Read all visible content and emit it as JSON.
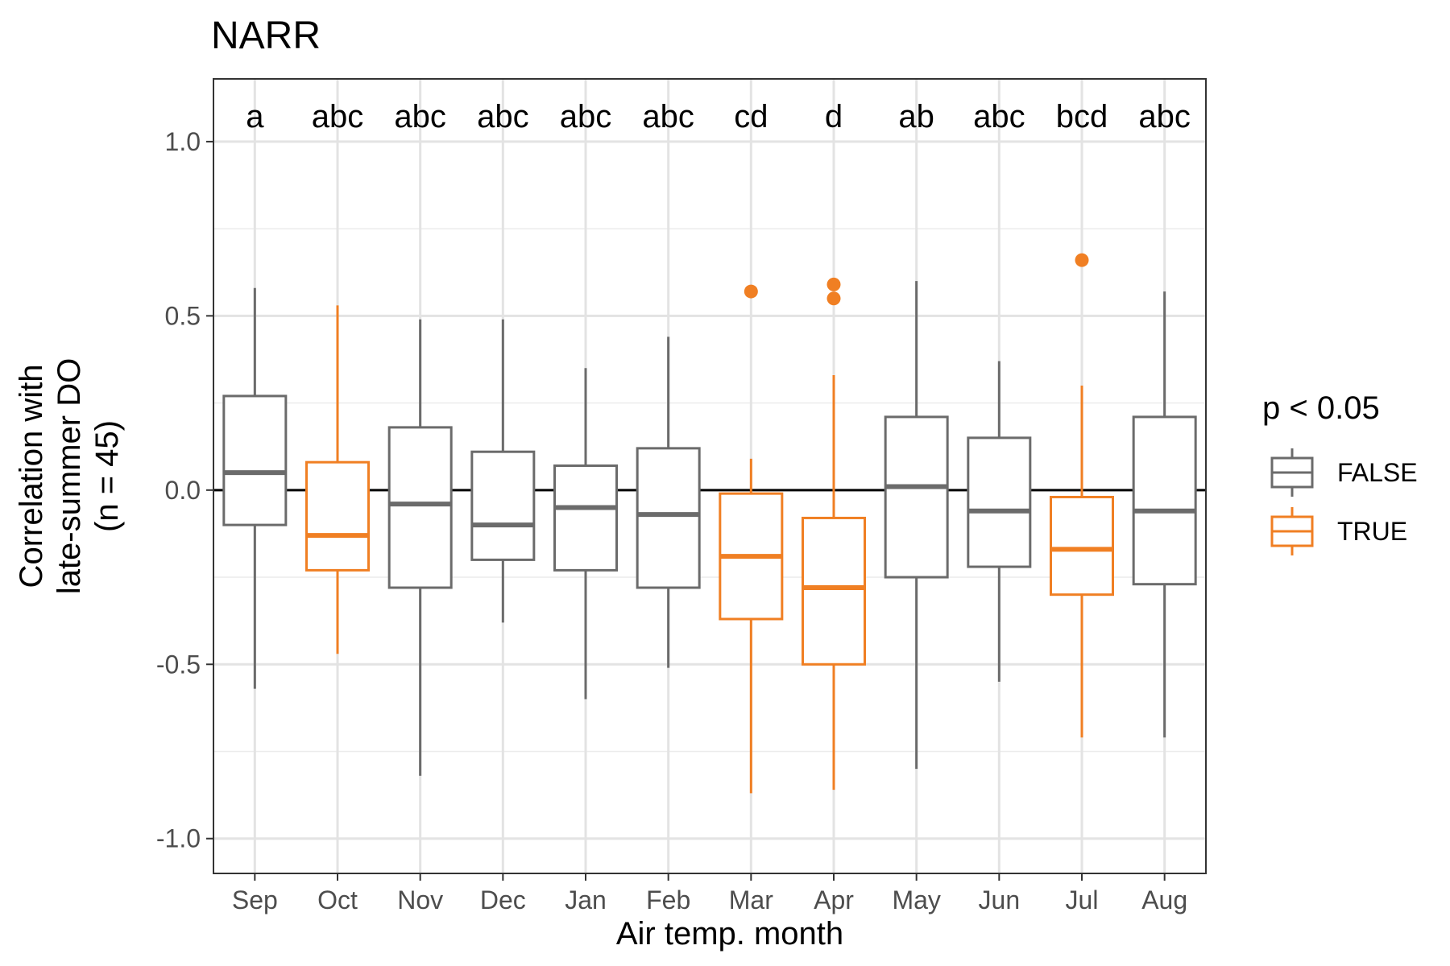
{
  "chart_data": {
    "type": "box",
    "title": "NARR",
    "xlabel": "Air temp. month",
    "ylabel_lines": [
      "Correlation with",
      "late-summer DO",
      "(n = 45)"
    ],
    "ylim": [
      -1.1,
      1.18
    ],
    "yticks": [
      -1.0,
      -0.5,
      0.0,
      0.5,
      1.0
    ],
    "ytick_labels": [
      "-1.0",
      "-0.5",
      "0.0",
      "0.5",
      "1.0"
    ],
    "reference_line_y": 0,
    "grid": true,
    "legend": {
      "title": "p < 0.05",
      "placement": "right",
      "entries": [
        {
          "label": "FALSE",
          "color": "#6b6b6b"
        },
        {
          "label": "TRUE",
          "color": "#f07f23"
        }
      ]
    },
    "colors": {
      "FALSE": "#6b6b6b",
      "TRUE": "#f07f23"
    },
    "boxes": [
      {
        "month": "Sep",
        "group_letter": "a",
        "significant": false,
        "whisker_low": -0.57,
        "q1": -0.1,
        "median": 0.05,
        "q3": 0.27,
        "whisker_high": 0.58,
        "outliers": []
      },
      {
        "month": "Oct",
        "group_letter": "abc",
        "significant": true,
        "whisker_low": -0.47,
        "q1": -0.23,
        "median": -0.13,
        "q3": 0.08,
        "whisker_high": 0.53,
        "outliers": []
      },
      {
        "month": "Nov",
        "group_letter": "abc",
        "significant": false,
        "whisker_low": -0.82,
        "q1": -0.28,
        "median": -0.04,
        "q3": 0.18,
        "whisker_high": 0.49,
        "outliers": []
      },
      {
        "month": "Dec",
        "group_letter": "abc",
        "significant": false,
        "whisker_low": -0.38,
        "q1": -0.2,
        "median": -0.1,
        "q3": 0.11,
        "whisker_high": 0.49,
        "outliers": []
      },
      {
        "month": "Jan",
        "group_letter": "abc",
        "significant": false,
        "whisker_low": -0.6,
        "q1": -0.23,
        "median": -0.05,
        "q3": 0.07,
        "whisker_high": 0.35,
        "outliers": []
      },
      {
        "month": "Feb",
        "group_letter": "abc",
        "significant": false,
        "whisker_low": -0.51,
        "q1": -0.28,
        "median": -0.07,
        "q3": 0.12,
        "whisker_high": 0.44,
        "outliers": []
      },
      {
        "month": "Mar",
        "group_letter": "cd",
        "significant": true,
        "whisker_low": -0.87,
        "q1": -0.37,
        "median": -0.19,
        "q3": -0.01,
        "whisker_high": 0.09,
        "outliers": [
          0.57
        ]
      },
      {
        "month": "Apr",
        "group_letter": "d",
        "significant": true,
        "whisker_low": -0.86,
        "q1": -0.5,
        "median": -0.28,
        "q3": -0.08,
        "whisker_high": 0.33,
        "outliers": [
          0.59,
          0.55
        ]
      },
      {
        "month": "May",
        "group_letter": "ab",
        "significant": false,
        "whisker_low": -0.8,
        "q1": -0.25,
        "median": 0.01,
        "q3": 0.21,
        "whisker_high": 0.6,
        "outliers": []
      },
      {
        "month": "Jun",
        "group_letter": "abc",
        "significant": false,
        "whisker_low": -0.55,
        "q1": -0.22,
        "median": -0.06,
        "q3": 0.15,
        "whisker_high": 0.37,
        "outliers": []
      },
      {
        "month": "Jul",
        "group_letter": "bcd",
        "significant": true,
        "whisker_low": -0.71,
        "q1": -0.3,
        "median": -0.17,
        "q3": -0.02,
        "whisker_high": 0.3,
        "outliers": [
          0.66
        ]
      },
      {
        "month": "Aug",
        "group_letter": "abc",
        "significant": false,
        "whisker_low": -0.71,
        "q1": -0.27,
        "median": -0.06,
        "q3": 0.21,
        "whisker_high": 0.57,
        "outliers": []
      }
    ]
  }
}
